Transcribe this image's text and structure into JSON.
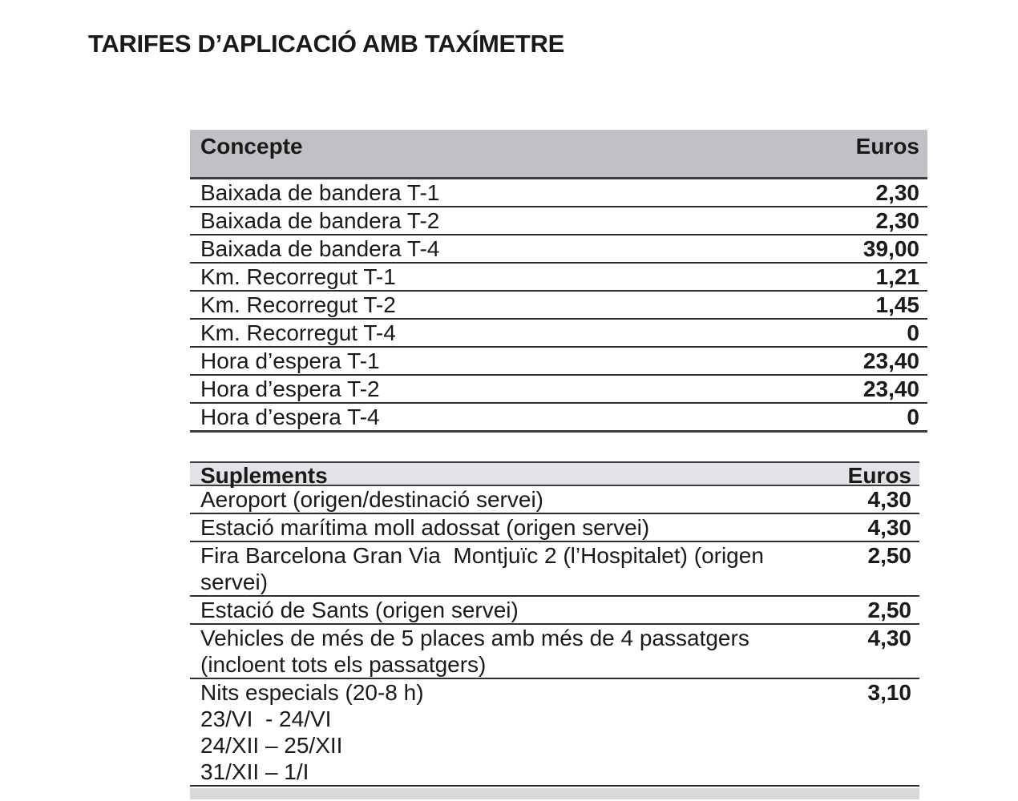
{
  "title": "TARIFES D’APLICACIÓ AMB TAXÍMETRE",
  "colors": {
    "page_bg": "#ffffff",
    "text": "#1a1a1a",
    "header_bg": "#c1c1c5",
    "subheader_bg": "#e3e3e7",
    "row_border": "#2e2e2e",
    "heavy_border": "#3c3c3c",
    "next_section_bg": "#d9d9db"
  },
  "table1": {
    "headers": {
      "concept": "Concepte",
      "euros": "Euros"
    },
    "rows": [
      {
        "label": "Baixada de bandera T-1",
        "value": "2,30"
      },
      {
        "label": "Baixada de bandera T-2",
        "value": "2,30"
      },
      {
        "label": "Baixada de bandera T-4",
        "value": "39,00"
      },
      {
        "label": "Km. Recorregut T-1",
        "value": "1,21"
      },
      {
        "label": "Km. Recorregut T-2",
        "value": "1,45"
      },
      {
        "label": "Km. Recorregut T-4",
        "value": "0"
      },
      {
        "label": "Hora d’espera T-1",
        "value": "23,40"
      },
      {
        "label": "Hora d’espera T-2",
        "value": "23,40"
      },
      {
        "label": "Hora d’espera T-4",
        "value": "0"
      }
    ]
  },
  "table2": {
    "headers": {
      "concept": "Suplements",
      "euros": "Euros"
    },
    "rows": [
      {
        "label": "Aeroport (origen/destinació servei)",
        "value": "4,30"
      },
      {
        "label": "Estació marítima moll adossat (origen servei)",
        "value": "4,30"
      },
      {
        "label": "Fira Barcelona Gran Via  Montjuïc 2 (l’Hospitalet) (origen\nservei)",
        "value": "2,50"
      },
      {
        "label": "Estació de Sants (origen servei)",
        "value": "2,50"
      },
      {
        "label": "Vehicles de més de 5 places amb més de 4 passatgers\n(incloent tots els passatgers)",
        "value": "4,30"
      },
      {
        "label": "Nits especials (20-8 h)\n23/VI  - 24/VI\n24/XII – 25/XII\n31/XII – 1/I",
        "value": "3,10"
      }
    ]
  }
}
